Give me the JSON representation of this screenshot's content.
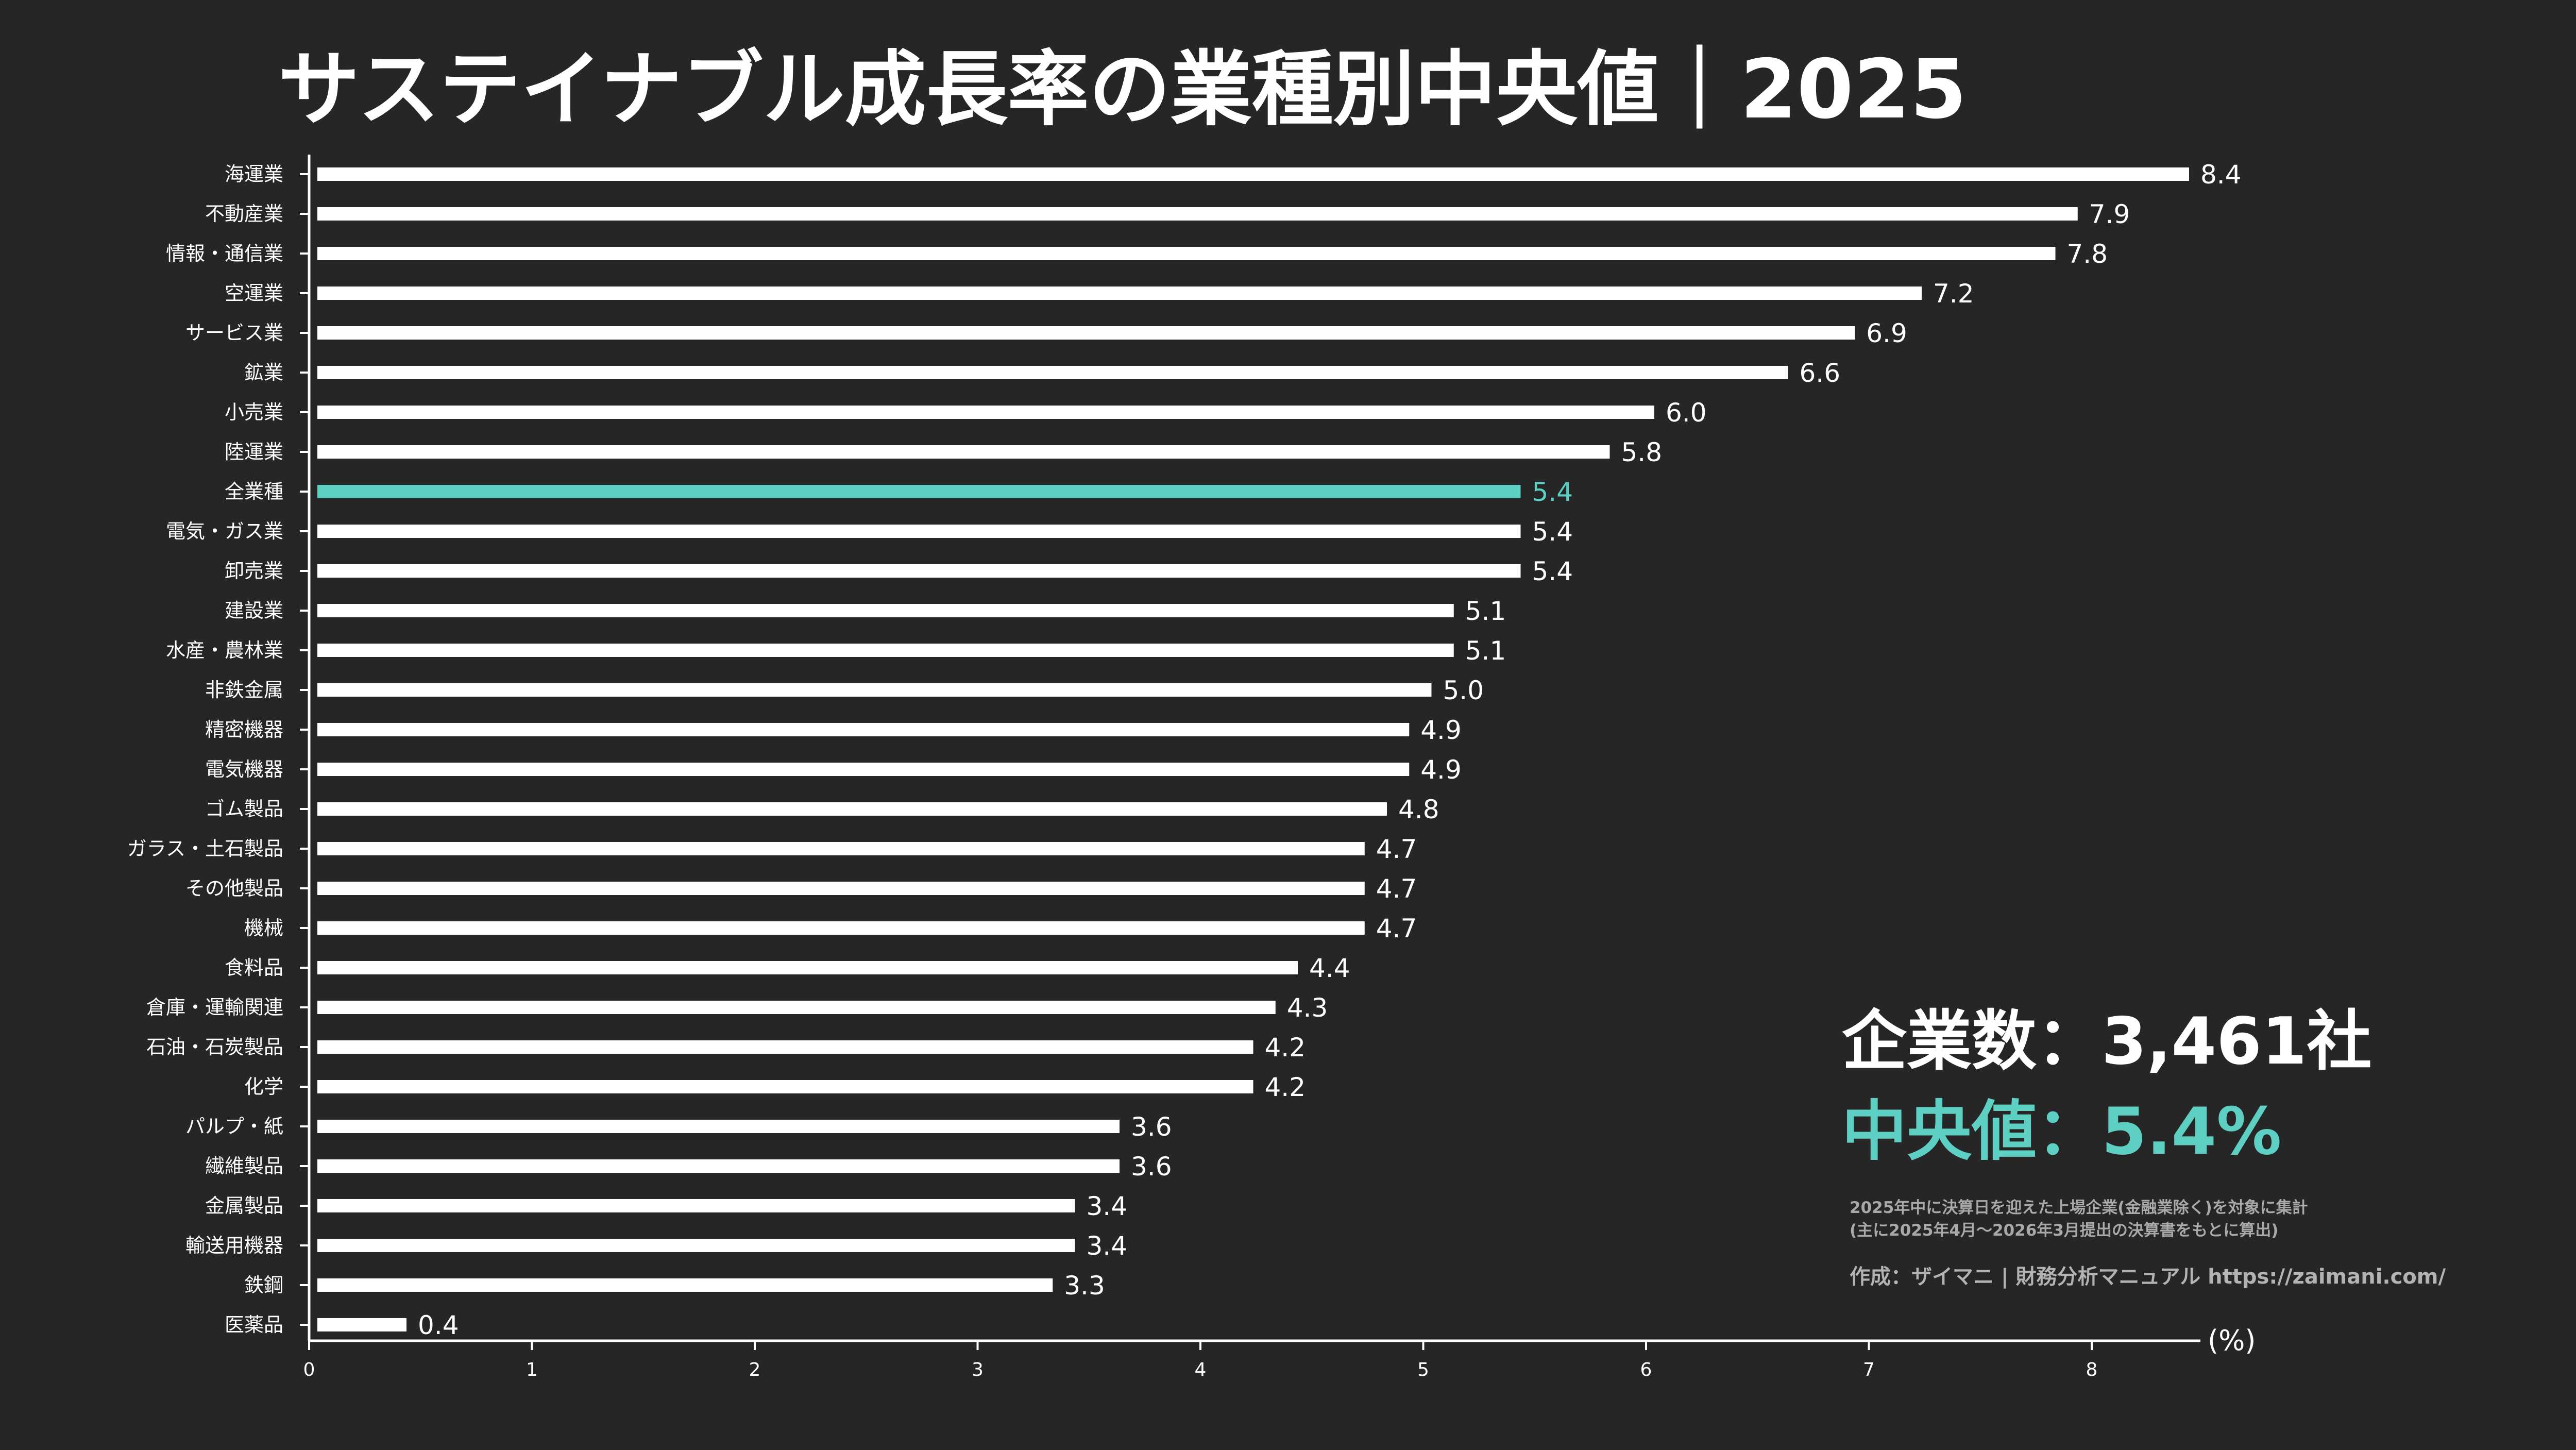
{
  "colors": {
    "background": "#262626",
    "bar": "#ffffff",
    "highlight": "#5ecfc3",
    "note_text": "#a9a9a9"
  },
  "summary": {
    "company_count": "企業数：3,461社",
    "median": "中央値：5.4%",
    "note_line1": "2025年中に決算日を迎えた上場企業(金融業除く)を対象に集計",
    "note_line2": "(主に2025年4月〜2026年3月提出の決算書をもとに算出)",
    "credit": "作成：ザイマニ | 財務分析マニュアル https://zaimani.com/"
  },
  "chart_data": {
    "type": "bar",
    "orientation": "horizontal",
    "title": "サステイナブル成長率の業種別中央値｜2025",
    "xlabel": "",
    "ylabel": "",
    "unit": "(%)",
    "xlim": [
      0,
      8.4
    ],
    "xticks": [
      0,
      1,
      2,
      3,
      4,
      5,
      6,
      7,
      8
    ],
    "grid": false,
    "legend": "none",
    "highlight_category": "全業種",
    "categories": [
      "海運業",
      "不動産業",
      "情報・通信業",
      "空運業",
      "サービス業",
      "鉱業",
      "小売業",
      "陸運業",
      "全業種",
      "電気・ガス業",
      "卸売業",
      "建設業",
      "水産・農林業",
      "非鉄金属",
      "精密機器",
      "電気機器",
      "ゴム製品",
      "ガラス・土石製品",
      "その他製品",
      "機械",
      "食料品",
      "倉庫・運輸関連",
      "石油・石炭製品",
      "化学",
      "パルプ・紙",
      "繊維製品",
      "金属製品",
      "輸送用機器",
      "鉄鋼",
      "医薬品"
    ],
    "values": [
      8.4,
      7.9,
      7.8,
      7.2,
      6.9,
      6.6,
      6.0,
      5.8,
      5.4,
      5.4,
      5.4,
      5.1,
      5.1,
      5.0,
      4.9,
      4.9,
      4.8,
      4.7,
      4.7,
      4.7,
      4.4,
      4.3,
      4.2,
      4.2,
      3.6,
      3.6,
      3.4,
      3.4,
      3.3,
      0.4
    ]
  }
}
